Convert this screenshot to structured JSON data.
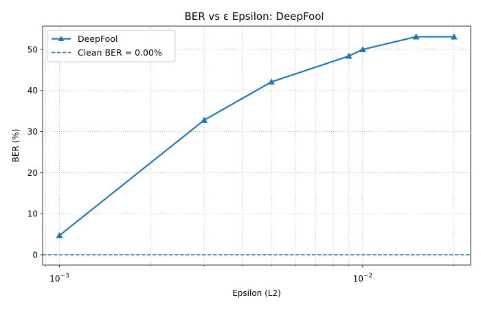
{
  "chart_data": {
    "type": "line",
    "title": "BER vs ε Epsilon: DeepFool",
    "xlabel": "Epsilon (L2)",
    "ylabel": "BER (%)",
    "x_scale": "log",
    "xlim": [
      0.00088,
      0.0227
    ],
    "ylim": [
      -2.5,
      55.7
    ],
    "grid": true,
    "grid_style": "dotted",
    "legend_position": "upper-left",
    "x_tick_labels": [
      "10^-3",
      "10^-2"
    ],
    "x_tick_values": [
      0.001,
      0.01
    ],
    "y_tick_values": [
      0,
      10,
      20,
      30,
      40,
      50
    ],
    "series": [
      {
        "name": "DeepFool",
        "color": "#1f77b4",
        "marker": "triangle-up",
        "linestyle": "solid",
        "x": [
          0.001,
          0.003,
          0.005,
          0.009,
          0.01,
          0.015,
          0.02
        ],
        "y": [
          4.7,
          32.8,
          42.1,
          48.4,
          50.0,
          53.1,
          53.1
        ]
      },
      {
        "name": "Clean BER = 0.00%",
        "color": "#1f77b4",
        "linestyle": "dashed",
        "type": "hline",
        "y": 0.0
      }
    ]
  }
}
